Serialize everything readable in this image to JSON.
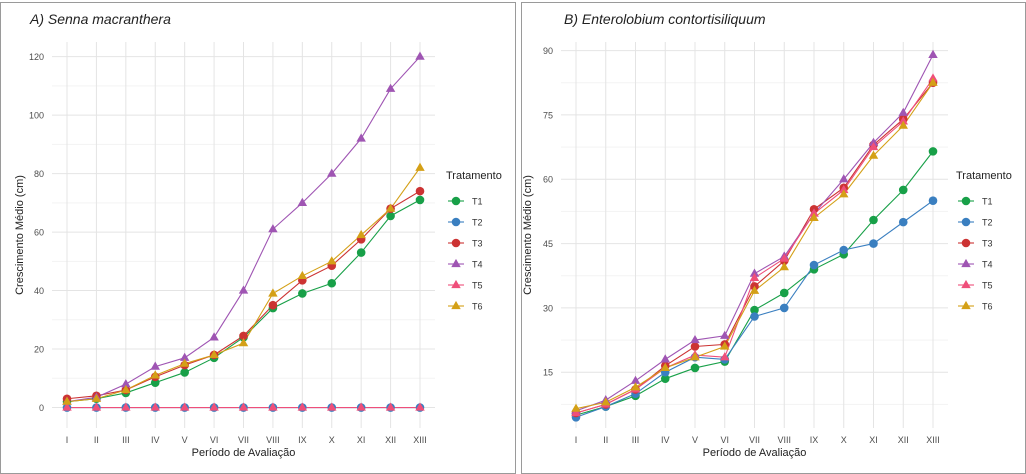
{
  "chart_data": [
    {
      "type": "line",
      "title": "A) Senna macranthera",
      "xlabel": "Período de Avaliação",
      "ylabel": "Crescimento Médio (cm)",
      "categories": [
        "I",
        "II",
        "III",
        "IV",
        "V",
        "VI",
        "VII",
        "VIII",
        "IX",
        "X",
        "XI",
        "XII",
        "XIII"
      ],
      "ylim": [
        -7,
        125
      ],
      "yticks": [
        0,
        20,
        40,
        60,
        80,
        100,
        120
      ],
      "grid": true,
      "legend": {
        "title": "Tratamento",
        "position": "right"
      },
      "series": [
        {
          "name": "T1",
          "color": "#18a048",
          "marker": "circle",
          "values": [
            2,
            3,
            5,
            8.5,
            12,
            17,
            24,
            34,
            39,
            42.5,
            53,
            65.5,
            71
          ]
        },
        {
          "name": "T2",
          "color": "#3a7fc0",
          "marker": "circle",
          "values": [
            0,
            0,
            0,
            0,
            0,
            0,
            0,
            0,
            0,
            0,
            0,
            0,
            0
          ]
        },
        {
          "name": "T3",
          "color": "#cc3333",
          "marker": "circle",
          "values": [
            3,
            4,
            6,
            10.5,
            14.5,
            18,
            24.5,
            35,
            43.5,
            48.5,
            57.5,
            68,
            74
          ]
        },
        {
          "name": "T4",
          "color": "#9f55b3",
          "marker": "triangle",
          "values": [
            2,
            3.5,
            8,
            14,
            17,
            24,
            40,
            61,
            70,
            80,
            92,
            109,
            120
          ]
        },
        {
          "name": "T5",
          "color": "#ef4f7a",
          "marker": "triangle",
          "values": [
            0,
            0,
            0,
            0,
            0,
            0,
            0,
            0,
            0,
            0,
            0,
            0,
            0
          ]
        },
        {
          "name": "T6",
          "color": "#d4a017",
          "marker": "triangle",
          "values": [
            2,
            3,
            6,
            11,
            15,
            18,
            22,
            39,
            45,
            50,
            59,
            68,
            82
          ]
        }
      ]
    },
    {
      "type": "line",
      "title": "B) Enterolobium contortisiliquum",
      "xlabel": "Período de Avaliação",
      "ylabel": "Crescimento Médio (cm)",
      "categories": [
        "I",
        "II",
        "III",
        "IV",
        "V",
        "VI",
        "VII",
        "VIII",
        "IX",
        "X",
        "XI",
        "XII",
        "XIII"
      ],
      "ylim": [
        2,
        92
      ],
      "yticks": [
        15,
        30,
        45,
        60,
        75,
        90
      ],
      "grid": true,
      "legend": {
        "title": "Tratamento",
        "position": "right"
      },
      "series": [
        {
          "name": "T1",
          "color": "#18a048",
          "marker": "circle",
          "values": [
            5,
            7,
            9.5,
            13.5,
            16,
            17.5,
            29.5,
            33.5,
            39,
            42.5,
            50.5,
            57.5,
            66.5
          ]
        },
        {
          "name": "T2",
          "color": "#3a7fc0",
          "marker": "circle",
          "values": [
            4.5,
            7,
            10,
            15,
            18.5,
            18,
            28,
            30,
            40,
            43.5,
            45,
            50,
            55
          ]
        },
        {
          "name": "T3",
          "color": "#cc3333",
          "marker": "circle",
          "values": [
            5.5,
            7.5,
            11,
            16.5,
            21,
            21.5,
            35,
            41,
            53,
            58,
            68,
            74,
            82.5
          ]
        },
        {
          "name": "T4",
          "color": "#9f55b3",
          "marker": "triangle",
          "values": [
            6,
            8.5,
            13,
            18,
            22.5,
            23.5,
            38,
            42,
            52,
            60,
            68.5,
            75.5,
            89
          ]
        },
        {
          "name": "T5",
          "color": "#ef4f7a",
          "marker": "triangle",
          "values": [
            5.5,
            7.5,
            11,
            16,
            19,
            18.5,
            37,
            41.5,
            52,
            57.5,
            67.5,
            73.5,
            83.5
          ]
        },
        {
          "name": "T6",
          "color": "#d4a017",
          "marker": "triangle",
          "values": [
            6.5,
            8,
            11.5,
            16,
            18.5,
            21,
            34,
            39.5,
            51,
            56.5,
            65.5,
            72.5,
            82.5
          ]
        }
      ]
    }
  ]
}
